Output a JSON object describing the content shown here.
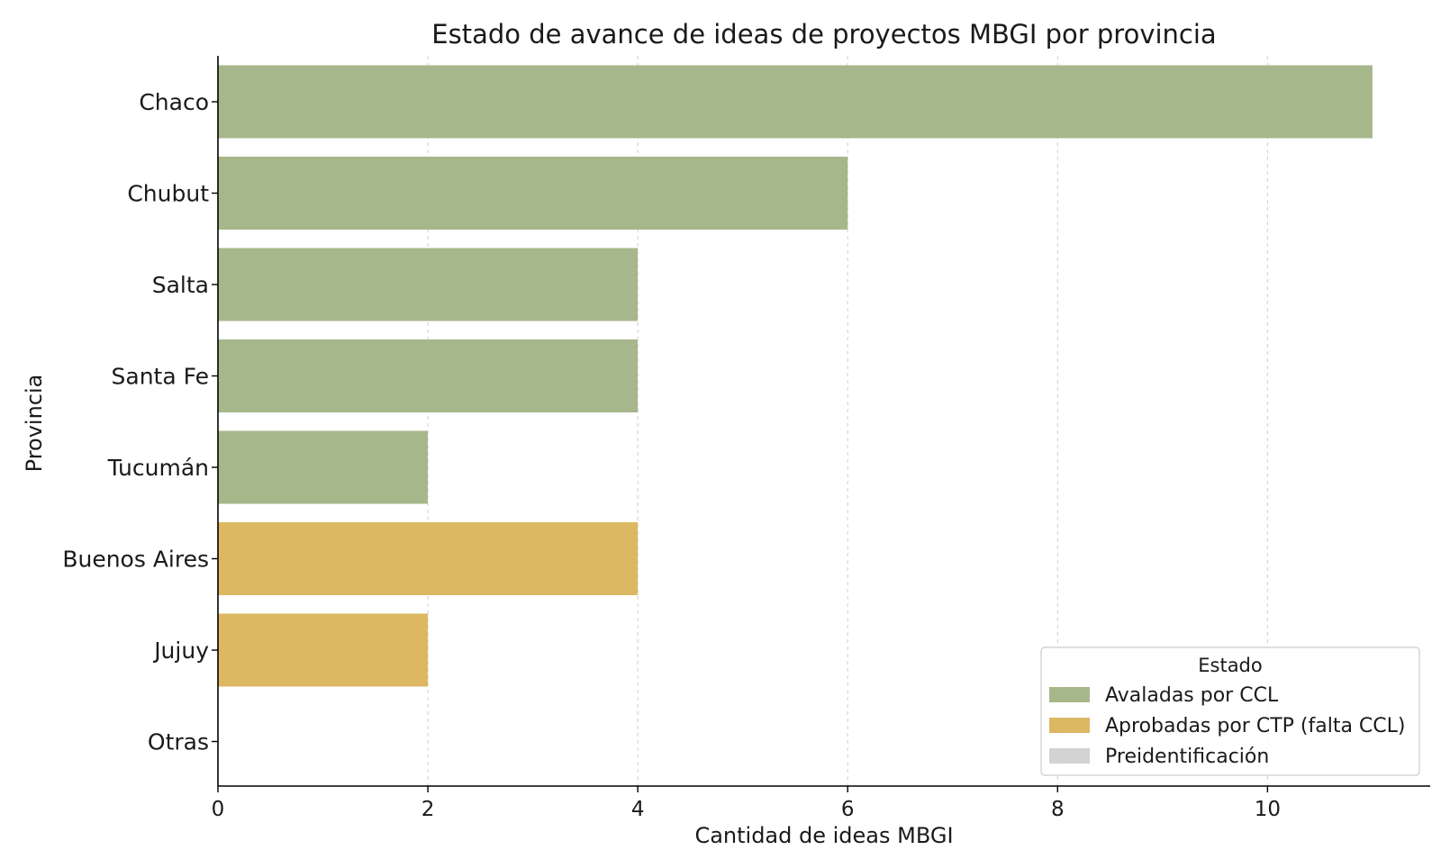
{
  "chart_data": {
    "type": "bar",
    "orientation": "horizontal",
    "title": "Estado de avance de ideas de proyectos MBGI por provincia",
    "xlabel": "Cantidad de ideas MBGI",
    "ylabel": "Provincia",
    "xlim": [
      0,
      11.55
    ],
    "xticks": [
      0,
      2,
      4,
      6,
      8,
      10
    ],
    "grid": "x-dashed",
    "categories": [
      "Chaco",
      "Chubut",
      "Salta",
      "Santa Fe",
      "Tucumán",
      "Buenos Aires",
      "Jujuy",
      "Otras"
    ],
    "series": [
      {
        "name": "Avaladas por CCL",
        "color": "#a6b78b",
        "values": [
          11,
          6,
          4,
          4,
          2,
          0,
          0,
          0
        ]
      },
      {
        "name": "Aprobadas por CTP (falta CCL)",
        "color": "#ddb862",
        "values": [
          0,
          0,
          0,
          0,
          0,
          4,
          2,
          0
        ]
      },
      {
        "name": "Preidentificación",
        "color": "#d3d3d3",
        "values": [
          0,
          0,
          0,
          0,
          0,
          0,
          0,
          0
        ]
      }
    ],
    "legend": {
      "title": "Estado",
      "position": "lower-right"
    }
  }
}
